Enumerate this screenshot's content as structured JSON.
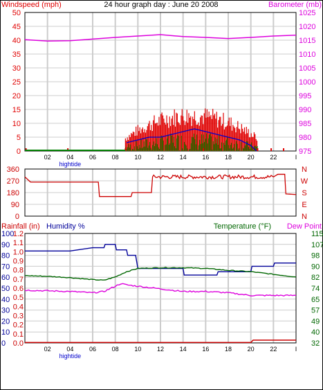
{
  "title": "24 hour graph day : June 20 2008",
  "colors": {
    "windspeed": "#e00000",
    "gust": "#e00000",
    "wind_avg": "#0000cc",
    "wind_low": "#008000",
    "barometer": "#dd00dd",
    "direction": "#cc0000",
    "rainfall": "#cc0000",
    "humidity": "#000099",
    "temperature": "#006600",
    "dewpoint": "#dd00dd",
    "grid": "#cccccc",
    "axis": "#000000"
  },
  "chart_data": [
    {
      "type": "bar",
      "name": "wind",
      "left_label": "Windspeed (mph)",
      "right_label": "Barometer (mb)",
      "xlabel": "hightide",
      "x_ticks": [
        "02",
        "04",
        "06",
        "08",
        "10",
        "12",
        "14",
        "16",
        "18",
        "20",
        "22",
        "I"
      ],
      "y_left": {
        "range": [
          0,
          50
        ],
        "ticks": [
          "0",
          "5",
          "10",
          "15",
          "20",
          "25",
          "30",
          "35",
          "40",
          "45",
          "50"
        ]
      },
      "y_right": {
        "range": [
          975,
          1025
        ],
        "ticks": [
          "975",
          "980",
          "985",
          "990",
          "995",
          "1000",
          "1005",
          "1010",
          "1015",
          "1020",
          "1025"
        ]
      },
      "windspeed_hours": [
        0.1,
        3.8,
        8.9,
        20.6
      ],
      "windspeed_span": [
        8.9,
        20.6
      ],
      "windspeed_peak": 15,
      "avg_wind": [
        [
          9.0,
          3
        ],
        [
          10.0,
          4
        ],
        [
          11.0,
          5
        ],
        [
          12.0,
          5
        ],
        [
          13.0,
          6
        ],
        [
          14.0,
          7
        ],
        [
          15.0,
          8
        ],
        [
          16.0,
          7
        ],
        [
          17.0,
          6
        ],
        [
          18.0,
          5
        ],
        [
          19.0,
          4
        ],
        [
          20.0,
          2
        ],
        [
          20.5,
          0
        ]
      ],
      "barometer": [
        [
          0,
          1015.2
        ],
        [
          2,
          1014.7
        ],
        [
          4,
          1014.8
        ],
        [
          6,
          1015.4
        ],
        [
          8,
          1016.0
        ],
        [
          10,
          1016.5
        ],
        [
          12,
          1017.0
        ],
        [
          14,
          1016.3
        ],
        [
          16,
          1016.0
        ],
        [
          18,
          1015.6
        ],
        [
          20,
          1016.0
        ],
        [
          22,
          1016.5
        ],
        [
          24,
          1016.8
        ]
      ]
    },
    {
      "type": "line",
      "name": "direction",
      "y_ticks": [
        "360",
        "270",
        "180",
        "90",
        "0"
      ],
      "y_range": [
        0,
        360
      ],
      "right_labels": [
        "N",
        "W",
        "S",
        "E",
        "N"
      ],
      "series": [
        [
          0,
          300
        ],
        [
          0.5,
          260
        ],
        [
          6.5,
          260
        ],
        [
          6.6,
          150
        ],
        [
          9.4,
          150
        ],
        [
          9.5,
          180
        ],
        [
          11.2,
          180
        ],
        [
          11.3,
          300
        ],
        [
          22,
          300
        ],
        [
          22.4,
          320
        ],
        [
          23,
          320
        ],
        [
          23.1,
          170
        ],
        [
          24,
          165
        ]
      ]
    },
    {
      "type": "line",
      "name": "climate",
      "left_label": "Rainfall (in)",
      "left_label2": "Humidity %",
      "right_label": "Temperature (°F)",
      "right_label2": "Dew Point",
      "xlabel": "hightide",
      "x_ticks": [
        "02",
        "04",
        "06",
        "08",
        "10",
        "12",
        "14",
        "16",
        "18",
        "20",
        "22",
        "I"
      ],
      "humidity_ticks": [
        "0",
        "10",
        "20",
        "30",
        "40",
        "50",
        "60",
        "70",
        "80",
        "90",
        "100"
      ],
      "rain_ticks": [
        "0.0",
        "0.1",
        "0.2",
        "0.3",
        "0.4",
        "0.5",
        "0.6",
        "0.7",
        "0.8",
        "0.9",
        "1.0",
        "1.1",
        "1.2"
      ],
      "temp_ticks": [
        "32",
        "40",
        "49",
        "57",
        "65",
        "74",
        "82",
        "90",
        "98",
        "107",
        "115"
      ],
      "temp_range": [
        32,
        115
      ],
      "humidity": [
        [
          0,
          84
        ],
        [
          2,
          84
        ],
        [
          4,
          84
        ],
        [
          6,
          87
        ],
        [
          7,
          87
        ],
        [
          7.1,
          90
        ],
        [
          8,
          90
        ],
        [
          8.1,
          85
        ],
        [
          9,
          85
        ],
        [
          9.1,
          80
        ],
        [
          9.8,
          80
        ],
        [
          10,
          68
        ],
        [
          14,
          68
        ],
        [
          14.1,
          62
        ],
        [
          17,
          62
        ],
        [
          17.1,
          65
        ],
        [
          20,
          65
        ],
        [
          20.1,
          70
        ],
        [
          22,
          70
        ],
        [
          22.1,
          73
        ],
        [
          24,
          73
        ]
      ],
      "temperature": [
        [
          0,
          83
        ],
        [
          2,
          82.5
        ],
        [
          4,
          81.5
        ],
        [
          6,
          80
        ],
        [
          7,
          79.5
        ],
        [
          8,
          82
        ],
        [
          9,
          86
        ],
        [
          10,
          88.5
        ],
        [
          12,
          89
        ],
        [
          14,
          89
        ],
        [
          16,
          88.5
        ],
        [
          18,
          87
        ],
        [
          20,
          86
        ],
        [
          22,
          84
        ],
        [
          24,
          82
        ]
      ],
      "dewpoint": [
        [
          0,
          72
        ],
        [
          2,
          71.5
        ],
        [
          4,
          71
        ],
        [
          6,
          70
        ],
        [
          7,
          71
        ],
        [
          8,
          75
        ],
        [
          8.5,
          77
        ],
        [
          9,
          76
        ],
        [
          10,
          75
        ],
        [
          12,
          73
        ],
        [
          14,
          71
        ],
        [
          16,
          71
        ],
        [
          18,
          70
        ],
        [
          20,
          68
        ],
        [
          22,
          68
        ],
        [
          24,
          68
        ]
      ],
      "rainfall": [
        [
          0,
          0.005
        ],
        [
          20,
          0.005
        ],
        [
          20.2,
          0.03
        ],
        [
          24,
          0.03
        ]
      ]
    }
  ]
}
